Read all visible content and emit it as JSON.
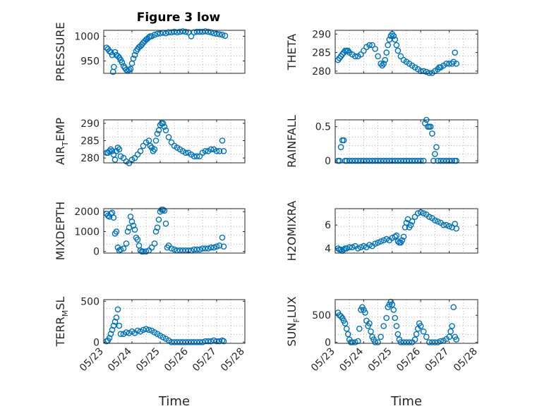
{
  "figure": {
    "title": "Figure 3 low",
    "marker_color": "#0072BD"
  },
  "x_axis": {
    "label": "Time",
    "ticks": [
      "05/23",
      "05/24",
      "05/25",
      "05/26",
      "05/27",
      "05/28"
    ],
    "tick_values": [
      0,
      1,
      2,
      3,
      4,
      5
    ],
    "range": [
      0,
      5
    ]
  },
  "chart_data": [
    {
      "id": "pressure",
      "type": "scatter",
      "ylabel": {
        "main": "PRESSURE"
      },
      "ylim": [
        925,
        1012
      ],
      "yticks": [
        950,
        1000
      ],
      "grid": true,
      "x": [
        0.1,
        0.15,
        0.2,
        0.25,
        0.3,
        0.33,
        0.36,
        0.4,
        0.45,
        0.5,
        0.55,
        0.6,
        0.65,
        0.7,
        0.75,
        0.8,
        0.85,
        0.9,
        0.95,
        1.0,
        1.05,
        1.1,
        1.15,
        1.2,
        1.25,
        1.3,
        1.35,
        1.4,
        1.45,
        1.5,
        1.55,
        1.6,
        1.65,
        1.7,
        1.8,
        1.9,
        2.0,
        2.1,
        2.2,
        2.3,
        2.4,
        2.5,
        2.6,
        2.7,
        2.8,
        2.9,
        3.0,
        3.1,
        3.2,
        3.3,
        3.4,
        3.5,
        3.6,
        3.7,
        3.8,
        3.9,
        4.0,
        4.1,
        4.2,
        4.3
      ],
      "y": [
        977,
        974,
        970,
        968,
        962,
        928,
        938,
        968,
        962,
        960,
        957,
        952,
        947,
        940,
        936,
        932,
        930,
        932,
        934,
        945,
        955,
        962,
        970,
        974,
        978,
        980,
        983,
        987,
        990,
        993,
        995,
        998,
        1000,
        1000,
        1003,
        1005,
        1006,
        1007,
        1006,
        1008,
        1008,
        1009,
        1008,
        1009,
        1010,
        1009,
        1008,
        1000,
        1008,
        1009,
        1009,
        1009,
        1010,
        1009,
        1008,
        1006,
        1005,
        1004,
        1003,
        1001
      ]
    },
    {
      "id": "theta",
      "type": "scatter",
      "ylabel": {
        "main": "THETA"
      },
      "ylim": [
        279.4,
        291
      ],
      "yticks": [
        280,
        285,
        290
      ],
      "grid": true,
      "x": [
        0.1,
        0.15,
        0.2,
        0.25,
        0.3,
        0.35,
        0.4,
        0.45,
        0.5,
        0.6,
        0.7,
        0.8,
        0.9,
        1.0,
        1.1,
        1.2,
        1.3,
        1.4,
        1.5,
        1.6,
        1.65,
        1.7,
        1.75,
        1.8,
        1.85,
        1.9,
        1.95,
        2.0,
        2.05,
        2.1,
        2.15,
        2.2,
        2.3,
        2.4,
        2.5,
        2.6,
        2.7,
        2.8,
        2.9,
        3.0,
        3.1,
        3.2,
        3.3,
        3.4,
        3.5,
        3.6,
        3.65,
        3.7,
        3.8,
        3.9,
        4.0,
        4.1,
        4.15,
        4.2,
        4.25
      ],
      "y": [
        283,
        283.5,
        284,
        284.5,
        285,
        285.5,
        285.5,
        285.5,
        285,
        284.5,
        284,
        284,
        284.5,
        285.5,
        286.5,
        287,
        287,
        286,
        284,
        282,
        281.5,
        282,
        283,
        285,
        287,
        288.5,
        289.5,
        290,
        289.5,
        288.5,
        287,
        285.5,
        284,
        283,
        282.5,
        282,
        281.5,
        281,
        280.5,
        280,
        280,
        279.8,
        279.5,
        279.5,
        280,
        280.5,
        281,
        281,
        281.5,
        282,
        282,
        282,
        282.5,
        285,
        282
      ]
    },
    {
      "id": "air_temp",
      "type": "scatter",
      "ylabel": {
        "main": "AIR",
        "sub": "T",
        "rest": "EMP"
      },
      "ylim": [
        278.6,
        291
      ],
      "yticks": [
        280,
        285,
        290
      ],
      "grid": true,
      "x": [
        0.1,
        0.15,
        0.2,
        0.25,
        0.3,
        0.35,
        0.4,
        0.45,
        0.5,
        0.55,
        0.6,
        0.7,
        0.8,
        0.9,
        1.0,
        1.1,
        1.2,
        1.3,
        1.4,
        1.5,
        1.6,
        1.65,
        1.7,
        1.75,
        1.8,
        1.85,
        1.9,
        1.95,
        2.0,
        2.05,
        2.1,
        2.15,
        2.2,
        2.3,
        2.4,
        2.5,
        2.6,
        2.7,
        2.8,
        2.9,
        3.0,
        3.1,
        3.2,
        3.3,
        3.4,
        3.5,
        3.6,
        3.7,
        3.8,
        3.9,
        4.0,
        4.1,
        4.2,
        4.25
      ],
      "y": [
        281.5,
        281.5,
        282,
        282.5,
        282,
        281,
        279.5,
        282,
        283,
        282.5,
        280.5,
        280,
        279,
        278.5,
        279.5,
        280,
        281,
        282,
        283.5,
        284.5,
        285,
        283.5,
        283,
        282,
        282.5,
        285,
        287,
        288,
        289.5,
        290,
        290,
        289,
        288,
        286,
        284.5,
        283.5,
        283,
        282.5,
        282,
        281.5,
        281.5,
        281,
        280.5,
        280.5,
        280.5,
        281.5,
        282,
        282,
        282.5,
        282.5,
        282,
        282,
        285,
        282
      ]
    },
    {
      "id": "rainfall",
      "type": "scatter",
      "ylabel": {
        "main": "RAINFALL"
      },
      "ylim": [
        -0.03,
        0.6
      ],
      "yticks": [
        0,
        0.5
      ],
      "grid": true,
      "x": [
        0.1,
        0.15,
        0.2,
        0.25,
        0.3,
        0.35,
        0.4,
        0.5,
        0.6,
        0.7,
        0.8,
        0.9,
        1.0,
        1.1,
        1.2,
        1.3,
        1.4,
        1.5,
        1.6,
        1.7,
        1.8,
        1.9,
        2.0,
        2.1,
        2.2,
        2.3,
        2.4,
        2.5,
        2.6,
        2.7,
        2.8,
        2.9,
        3.0,
        3.1,
        3.15,
        3.2,
        3.25,
        3.3,
        3.35,
        3.4,
        3.45,
        3.5,
        3.55,
        3.6,
        3.7,
        3.8,
        3.9,
        4.0,
        4.1,
        4.2,
        4.25
      ],
      "y": [
        0,
        0,
        0.2,
        0.3,
        0.3,
        0,
        0,
        0,
        0,
        0,
        0,
        0,
        0,
        0,
        0,
        0,
        0,
        0,
        0,
        0,
        0,
        0,
        0,
        0,
        0,
        0,
        0,
        0,
        0,
        0,
        0,
        0,
        0,
        0,
        0.55,
        0.6,
        0.5,
        0.5,
        0.5,
        0.4,
        0,
        0.1,
        0.2,
        0,
        0,
        0,
        0,
        0,
        0,
        0,
        0
      ]
    },
    {
      "id": "mixdepth",
      "type": "scatter",
      "ylabel": {
        "main": "MIXDEPTH"
      },
      "ylim": [
        -80,
        2150
      ],
      "yticks": [
        0,
        1000,
        2000
      ],
      "grid": true,
      "x": [
        0.1,
        0.15,
        0.2,
        0.25,
        0.3,
        0.35,
        0.4,
        0.45,
        0.5,
        0.55,
        0.6,
        0.7,
        0.8,
        0.85,
        0.9,
        0.95,
        1.0,
        1.05,
        1.1,
        1.15,
        1.2,
        1.25,
        1.3,
        1.35,
        1.4,
        1.5,
        1.6,
        1.7,
        1.8,
        1.85,
        1.9,
        1.95,
        2.0,
        2.05,
        2.1,
        2.15,
        2.2,
        2.25,
        2.3,
        2.4,
        2.5,
        2.6,
        2.7,
        2.8,
        2.9,
        3.0,
        3.1,
        3.2,
        3.3,
        3.4,
        3.5,
        3.6,
        3.7,
        3.8,
        3.9,
        4.0,
        4.1,
        4.2,
        4.25
      ],
      "y": [
        1900,
        1800,
        1750,
        1900,
        1950,
        1700,
        900,
        1000,
        200,
        50,
        100,
        150,
        400,
        1000,
        1200,
        1750,
        1500,
        1300,
        1100,
        700,
        600,
        300,
        50,
        0,
        0,
        0,
        50,
        200,
        400,
        1000,
        1200,
        1600,
        2000,
        2100,
        2100,
        2050,
        1400,
        200,
        300,
        150,
        100,
        50,
        50,
        50,
        50,
        50,
        50,
        100,
        100,
        100,
        150,
        150,
        150,
        200,
        200,
        250,
        300,
        700,
        250
      ]
    },
    {
      "id": "h2omixra",
      "type": "scatter",
      "ylabel": {
        "main": "H2OMIXRA"
      },
      "ylim": [
        3.6,
        7.4
      ],
      "yticks": [
        4,
        6
      ],
      "grid": true,
      "x": [
        0.1,
        0.15,
        0.2,
        0.25,
        0.3,
        0.35,
        0.4,
        0.5,
        0.6,
        0.7,
        0.8,
        0.9,
        1.0,
        1.1,
        1.2,
        1.3,
        1.4,
        1.5,
        1.6,
        1.7,
        1.8,
        1.9,
        2.0,
        2.1,
        2.15,
        2.2,
        2.25,
        2.3,
        2.35,
        2.4,
        2.45,
        2.5,
        2.55,
        2.6,
        2.65,
        2.7,
        2.8,
        2.9,
        3.0,
        3.1,
        3.2,
        3.3,
        3.4,
        3.5,
        3.6,
        3.7,
        3.8,
        3.9,
        4.0,
        4.1,
        4.2,
        4.25
      ],
      "y": [
        4.0,
        3.9,
        3.9,
        3.8,
        3.9,
        4.0,
        4.0,
        4.1,
        4.1,
        4.2,
        4.0,
        4.1,
        4.2,
        4.1,
        4.3,
        4.2,
        4.4,
        4.5,
        4.6,
        4.7,
        4.8,
        4.7,
        4.9,
        5.0,
        5.1,
        4.6,
        4.5,
        4.5,
        4.7,
        5.0,
        5.8,
        6.2,
        6.5,
        5.8,
        6.0,
        6.3,
        6.7,
        7.0,
        7.1,
        7.0,
        6.9,
        6.7,
        6.6,
        6.4,
        6.3,
        6.2,
        6.0,
        6.0,
        5.9,
        5.8,
        6.1,
        5.7
      ]
    },
    {
      "id": "terr_msl",
      "type": "scatter",
      "ylabel": {
        "main": "TERR",
        "sub": "M",
        "rest": "SL"
      },
      "ylim": [
        -15,
        520
      ],
      "yticks": [
        0,
        500
      ],
      "grid": true,
      "x": [
        0.1,
        0.15,
        0.2,
        0.25,
        0.3,
        0.35,
        0.4,
        0.45,
        0.5,
        0.55,
        0.6,
        0.7,
        0.8,
        0.9,
        1.0,
        1.1,
        1.2,
        1.3,
        1.4,
        1.5,
        1.6,
        1.7,
        1.8,
        1.9,
        2.0,
        2.1,
        2.2,
        2.3,
        2.4,
        2.5,
        2.6,
        2.7,
        2.8,
        2.9,
        3.0,
        3.1,
        3.2,
        3.3,
        3.4,
        3.5,
        3.6,
        3.7,
        3.8,
        3.9,
        4.0,
        4.1,
        4.2,
        4.25
      ],
      "y": [
        10,
        20,
        50,
        100,
        150,
        200,
        250,
        300,
        400,
        200,
        100,
        100,
        120,
        110,
        130,
        110,
        140,
        130,
        150,
        160,
        150,
        140,
        120,
        100,
        80,
        60,
        40,
        20,
        0,
        0,
        0,
        0,
        0,
        0,
        0,
        0,
        0,
        0,
        0,
        0,
        10,
        10,
        10,
        20,
        10,
        10,
        20,
        10
      ]
    },
    {
      "id": "sun_flux",
      "type": "scatter",
      "ylabel": {
        "main": "SUN",
        "sub": "F",
        "rest": "LUX"
      },
      "ylim": [
        -20,
        790
      ],
      "yticks": [
        0,
        500
      ],
      "grid": true,
      "x": [
        0.1,
        0.15,
        0.2,
        0.25,
        0.3,
        0.35,
        0.4,
        0.45,
        0.5,
        0.55,
        0.6,
        0.7,
        0.8,
        0.85,
        0.9,
        0.95,
        1.0,
        1.05,
        1.1,
        1.15,
        1.2,
        1.25,
        1.3,
        1.35,
        1.4,
        1.5,
        1.6,
        1.7,
        1.8,
        1.85,
        1.9,
        1.95,
        2.0,
        2.05,
        2.1,
        2.15,
        2.2,
        2.25,
        2.3,
        2.4,
        2.5,
        2.6,
        2.7,
        2.8,
        2.85,
        2.9,
        2.95,
        3.0,
        3.1,
        3.2,
        3.3,
        3.4,
        3.5,
        3.6,
        3.7,
        3.8,
        3.9,
        4.0,
        4.05,
        4.1,
        4.15,
        4.2,
        4.25
      ],
      "y": [
        550,
        500,
        480,
        450,
        400,
        350,
        250,
        150,
        50,
        0,
        0,
        0,
        20,
        250,
        600,
        650,
        600,
        550,
        400,
        300,
        350,
        200,
        100,
        50,
        0,
        0,
        100,
        300,
        450,
        650,
        700,
        750,
        700,
        600,
        450,
        300,
        150,
        50,
        0,
        0,
        0,
        0,
        0,
        50,
        150,
        250,
        350,
        300,
        200,
        100,
        0,
        0,
        0,
        0,
        20,
        30,
        60,
        100,
        200,
        300,
        650,
        100,
        50
      ]
    }
  ]
}
